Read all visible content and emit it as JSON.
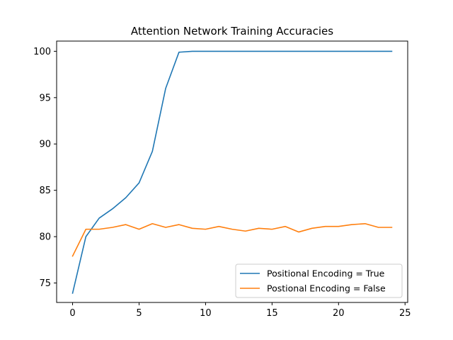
{
  "chart_data": {
    "type": "line",
    "title": "Attention Network Training Accuracies",
    "xlabel": "",
    "ylabel": "",
    "xlim": [
      -1.2,
      25.2
    ],
    "ylim": [
      72.9,
      101.1
    ],
    "x_ticks": [
      0,
      5,
      10,
      15,
      20,
      25
    ],
    "y_ticks": [
      75,
      80,
      85,
      90,
      95,
      100
    ],
    "grid": false,
    "legend_position": "lower-right",
    "x": [
      0,
      1,
      2,
      3,
      4,
      5,
      6,
      7,
      8,
      9,
      10,
      11,
      12,
      13,
      14,
      15,
      16,
      17,
      18,
      19,
      20,
      21,
      22,
      23,
      24
    ],
    "series": [
      {
        "name": "Positional Encoding = True",
        "color": "#1f77b4",
        "values": [
          73.9,
          80.0,
          82.0,
          83.0,
          84.2,
          85.8,
          89.2,
          96.0,
          99.9,
          100.0,
          100.0,
          100.0,
          100.0,
          100.0,
          100.0,
          100.0,
          100.0,
          100.0,
          100.0,
          100.0,
          100.0,
          100.0,
          100.0,
          100.0,
          100.0
        ]
      },
      {
        "name": "Postional Encoding = False",
        "color": "#ff7f0e",
        "values": [
          77.9,
          80.8,
          80.8,
          81.0,
          81.3,
          80.8,
          81.4,
          81.0,
          81.3,
          80.9,
          80.8,
          81.1,
          80.8,
          80.6,
          80.9,
          80.8,
          81.1,
          80.5,
          80.9,
          81.1,
          81.1,
          81.3,
          81.4,
          81.0,
          81.0
        ]
      }
    ]
  }
}
